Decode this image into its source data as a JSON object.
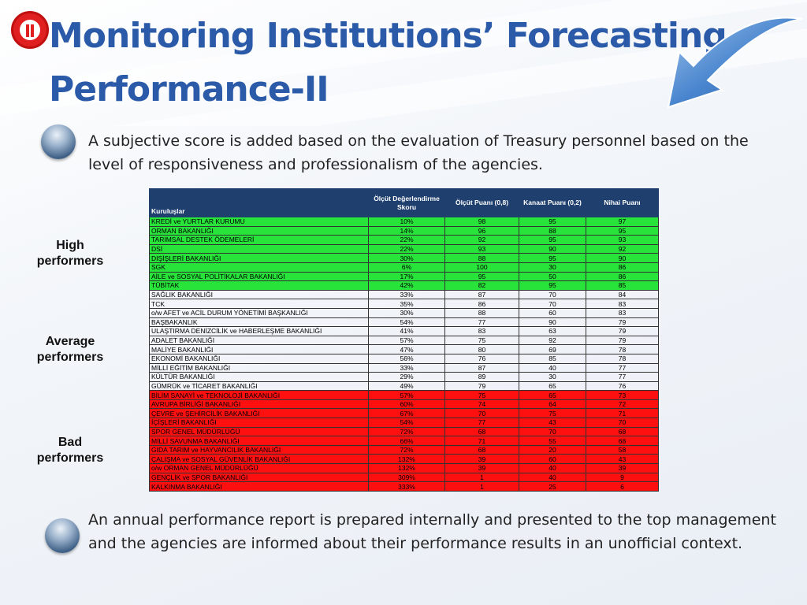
{
  "slide": {
    "title": "Monitoring Institutions’ Forecasting Performance-II",
    "intro": "A subjective score is added based on the evaluation of Treasury personnel based on the level of responsiveness and professionalism of the agencies.",
    "closing": "An annual performance report is prepared internally and presented to the top management and the agencies are informed about their performance results in an unofficial context."
  },
  "groups": {
    "high": "High\nperformers",
    "average": "Average\nperformers",
    "bad": "Bad\nperformers"
  },
  "colors": {
    "title": "#2b5aa8",
    "header": "#1f3f6e",
    "high": "#28e43a",
    "average": "#1e9ee6",
    "bad": "#ff1010"
  },
  "table": {
    "headers": [
      "Kuruluşlar",
      "Ölçüt Değerlendirme Skoru",
      "Ölçüt Puanı (0,8)",
      "Kanaat Puanı (0,2)",
      "Nihai Puanı"
    ],
    "rows": [
      {
        "group": "high",
        "cells": [
          "KREDİ ve YURTLAR KURUMU",
          "10%",
          "98",
          "95",
          "97"
        ]
      },
      {
        "group": "high",
        "cells": [
          "ORMAN BAKANLIĞI",
          "14%",
          "96",
          "88",
          "95"
        ]
      },
      {
        "group": "high",
        "cells": [
          "TARIMSAL DESTEK ÖDEMELERİ",
          "22%",
          "92",
          "95",
          "93"
        ]
      },
      {
        "group": "high",
        "cells": [
          "DSİ",
          "22%",
          "93",
          "90",
          "92"
        ]
      },
      {
        "group": "high",
        "cells": [
          "DIŞİŞLERİ BAKANLIĞI",
          "30%",
          "88",
          "95",
          "90"
        ]
      },
      {
        "group": "high",
        "cells": [
          "SGK",
          "6%",
          "100",
          "30",
          "86"
        ]
      },
      {
        "group": "high",
        "cells": [
          "AİLE ve SOSYAL POLİTİKALAR BAKANLIĞI",
          "17%",
          "95",
          "50",
          "86"
        ]
      },
      {
        "group": "high",
        "cells": [
          "TÜBİTAK",
          "42%",
          "82",
          "95",
          "85"
        ]
      },
      {
        "group": "average",
        "cells": [
          "SAĞLIK BAKANLIĞI",
          "33%",
          "87",
          "70",
          "84"
        ]
      },
      {
        "group": "average",
        "cells": [
          "TCK",
          "35%",
          "86",
          "70",
          "83"
        ]
      },
      {
        "group": "average",
        "cells": [
          "o/w AFET ve ACİL DURUM YÖNETİMİ BAŞKANLIĞI",
          "30%",
          "88",
          "60",
          "83"
        ]
      },
      {
        "group": "average",
        "cells": [
          "BAŞBAKANLIK",
          "54%",
          "77",
          "90",
          "79"
        ]
      },
      {
        "group": "average",
        "cells": [
          "ULAŞTIRMA DENİZCİLİK ve HABERLEŞME BAKANLIĞI",
          "41%",
          "83",
          "63",
          "79"
        ]
      },
      {
        "group": "average",
        "cells": [
          "ADALET BAKANLIĞI",
          "57%",
          "75",
          "92",
          "79"
        ]
      },
      {
        "group": "average",
        "cells": [
          "MALİYE BAKANLIĞI",
          "47%",
          "80",
          "69",
          "78"
        ]
      },
      {
        "group": "average",
        "cells": [
          "EKONOMİ BAKANLIĞI",
          "56%",
          "76",
          "85",
          "78"
        ]
      },
      {
        "group": "average",
        "cells": [
          "MİLLİ EĞİTİM BAKANLIĞI",
          "33%",
          "87",
          "40",
          "77"
        ]
      },
      {
        "group": "average",
        "cells": [
          "KÜLTÜR BAKANLIĞI",
          "29%",
          "89",
          "30",
          "77"
        ]
      },
      {
        "group": "average",
        "cells": [
          "GÜMRÜK ve TİCARET BAKANLIĞI",
          "49%",
          "79",
          "65",
          "76"
        ]
      },
      {
        "group": "bad",
        "cells": [
          "BİLİM SANAYİ ve TEKNOLOJİ BAKANLIĞI",
          "57%",
          "75",
          "65",
          "73"
        ]
      },
      {
        "group": "bad",
        "cells": [
          "AVRUPA BİRLİĞİ BAKANLIĞI",
          "60%",
          "74",
          "64",
          "72"
        ]
      },
      {
        "group": "bad",
        "cells": [
          "ÇEVRE ve ŞEHİRCİLİK BAKANLIĞI",
          "67%",
          "70",
          "75",
          "71"
        ]
      },
      {
        "group": "bad",
        "cells": [
          "İÇİŞLERİ BAKANLIĞI",
          "54%",
          "77",
          "43",
          "70"
        ]
      },
      {
        "group": "bad",
        "cells": [
          "SPOR GENEL MÜDÜRLÜĞÜ",
          "72%",
          "68",
          "70",
          "68"
        ]
      },
      {
        "group": "bad",
        "cells": [
          "MİLLİ SAVUNMA BAKANLIĞI",
          "66%",
          "71",
          "55",
          "68"
        ]
      },
      {
        "group": "bad",
        "cells": [
          "GIDA TARIM ve HAYVANCILIK BAKANLIĞI",
          "72%",
          "68",
          "20",
          "58"
        ]
      },
      {
        "group": "bad",
        "cells": [
          "ÇALIŞMA ve SOSYAL GÜVENLİK BAKANLIĞI",
          "132%",
          "39",
          "60",
          "43"
        ]
      },
      {
        "group": "bad",
        "cells": [
          "o/w ORMAN GENEL MÜDÜRLÜĞÜ",
          "132%",
          "39",
          "40",
          "39"
        ]
      },
      {
        "group": "bad",
        "cells": [
          "GENÇLİK ve SPOR BAKANLIĞI",
          "309%",
          "1",
          "40",
          "9"
        ]
      },
      {
        "group": "bad",
        "cells": [
          "KALKINMA BAKANLIĞI",
          "333%",
          "1",
          "25",
          "6"
        ]
      }
    ]
  }
}
